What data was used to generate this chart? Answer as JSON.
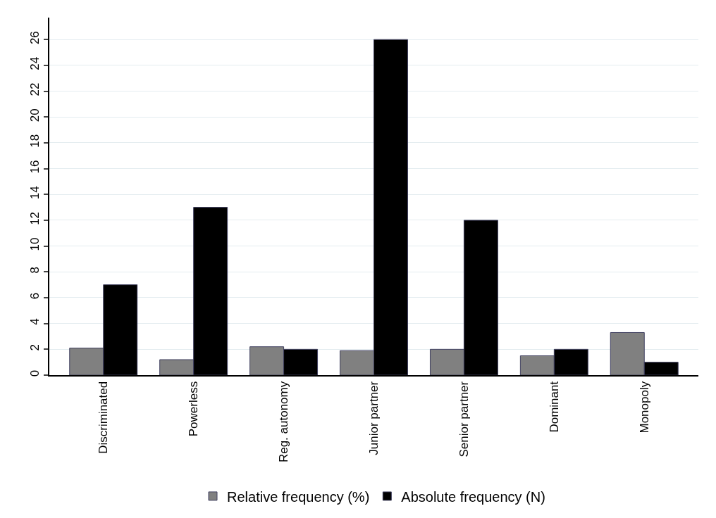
{
  "chart_data": {
    "type": "bar",
    "categories": [
      "Discriminated",
      "Powerless",
      "Reg. autonomy",
      "Junior partner",
      "Senior partner",
      "Dominant",
      "Monopoly"
    ],
    "series": [
      {
        "name": "Relative frequency (%)",
        "color": "#808080",
        "values": [
          2.1,
          1.2,
          2.2,
          1.9,
          2.0,
          1.5,
          3.3
        ]
      },
      {
        "name": "Absolute frequency (N)",
        "color": "#000000",
        "values": [
          7,
          13,
          2,
          26,
          12,
          2,
          1
        ]
      }
    ],
    "ylim": [
      0,
      27.7
    ],
    "yticks": [
      0,
      2,
      4,
      6,
      8,
      10,
      12,
      14,
      16,
      18,
      20,
      22,
      24,
      26
    ],
    "grid": "y",
    "legend": "bottom"
  }
}
